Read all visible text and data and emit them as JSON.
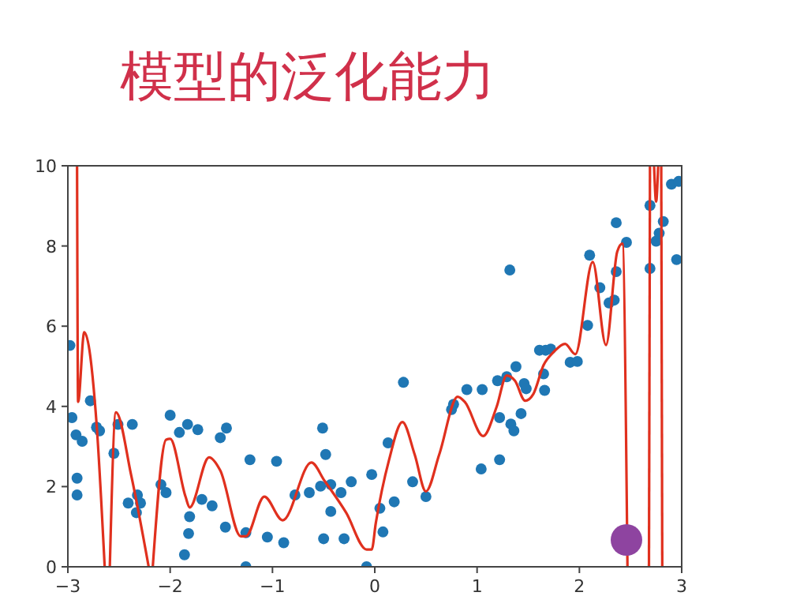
{
  "chart_data": {
    "type": "scatter",
    "title": "模型的泛化能力",
    "xlim": [
      -3,
      3
    ],
    "ylim": [
      0,
      10
    ],
    "xticks": [
      {
        "value": -3,
        "label": "−3"
      },
      {
        "value": -2,
        "label": "−2"
      },
      {
        "value": -1,
        "label": "−1"
      },
      0,
      1,
      2,
      3
    ],
    "yticks": [
      0,
      2,
      4,
      6,
      8,
      10
    ],
    "grid": false,
    "series": [
      {
        "color": "#1f77b4",
        "marker": "circle",
        "x": [
          -2.98,
          -2.96,
          -2.92,
          -2.86,
          -2.91,
          -2.91,
          -2.78,
          -2.72,
          -2.69,
          -2.55,
          -2.51,
          -2.37,
          -2.41,
          -2.32,
          -2.29,
          -2.33,
          -2.09,
          -2.04,
          -2.0,
          -1.91,
          -1.83,
          -1.73,
          -1.81,
          -1.82,
          -1.86,
          -1.69,
          -1.59,
          -1.51,
          -1.45,
          -1.46,
          -1.26,
          -1.26,
          -1.22,
          -0.96,
          -1.05,
          -0.89,
          -0.78,
          -0.64,
          -0.53,
          -0.51,
          -0.48,
          -0.43,
          -0.43,
          -0.5,
          -0.33,
          -0.3,
          -0.23,
          -0.08,
          -0.03,
          0.05,
          0.08,
          0.19,
          0.13,
          0.28,
          0.37,
          0.5,
          0.75,
          0.77,
          0.9,
          1.04,
          1.05,
          1.22,
          1.22,
          1.2,
          1.29,
          1.32,
          1.33,
          1.36,
          1.38,
          1.43,
          1.46,
          1.48,
          1.61,
          1.67,
          1.72,
          1.65,
          1.66,
          1.91,
          1.98,
          2.08,
          2.1,
          2.2,
          2.29,
          2.34,
          2.36,
          2.36,
          2.46,
          2.69,
          2.69,
          2.75,
          2.78,
          2.82,
          2.9,
          2.97,
          2.95
        ],
        "values": [
          5.52,
          3.72,
          3.29,
          3.13,
          2.21,
          1.79,
          4.14,
          3.48,
          3.39,
          2.83,
          3.55,
          3.55,
          1.59,
          1.79,
          1.59,
          1.35,
          2.05,
          1.85,
          3.78,
          3.35,
          3.55,
          3.42,
          1.25,
          0.83,
          0.3,
          1.68,
          1.52,
          3.22,
          3.46,
          0.99,
          0.85,
          0.0,
          2.67,
          2.63,
          0.74,
          0.6,
          1.79,
          1.85,
          2.01,
          3.46,
          2.8,
          2.05,
          1.38,
          0.7,
          1.85,
          0.7,
          2.12,
          0.0,
          2.3,
          1.46,
          0.87,
          1.62,
          3.09,
          4.6,
          2.12,
          1.75,
          3.92,
          4.05,
          4.42,
          2.44,
          4.42,
          2.67,
          3.72,
          4.64,
          4.74,
          7.4,
          3.56,
          3.39,
          4.99,
          3.82,
          4.57,
          4.44,
          5.4,
          5.4,
          5.43,
          4.81,
          4.4,
          5.1,
          5.12,
          6.02,
          7.77,
          6.96,
          6.58,
          6.65,
          7.36,
          8.58,
          8.09,
          9.01,
          7.44,
          8.12,
          8.32,
          8.61,
          9.54,
          9.61,
          7.66
        ]
      },
      {
        "type": "line",
        "color": "#e0301e",
        "line_style": "solid",
        "x": [
          -2.91,
          -2.9,
          -2.84,
          -2.72,
          -2.64
        ],
        "values": [
          10,
          4.11,
          5.85,
          3.59,
          0
        ]
      },
      {
        "type": "line",
        "color": "#e0301e",
        "line_style": "solid",
        "x": [
          -2.59,
          -2.53,
          -2.38,
          -2.21
        ],
        "values": [
          0,
          3.85,
          2.27,
          0
        ]
      },
      {
        "type": "line",
        "color": "#e0301e",
        "line_style": "solid",
        "x": [
          -2.17,
          -2.04,
          -2.0,
          -1.85,
          -1.81,
          -1.62,
          -1.51,
          -1.31,
          -1.26,
          -1.08,
          -0.9,
          -0.62,
          -0.49,
          -0.28,
          -0.08,
          -0.03,
          0.01,
          0.14,
          0.27,
          0.39,
          0.5,
          0.63,
          0.81,
          0.88,
          1.06,
          1.19,
          1.29,
          1.37,
          1.47,
          1.55,
          1.65,
          1.75,
          1.86,
          1.96,
          2.13,
          2.26,
          2.37,
          2.42,
          2.47
        ],
        "values": [
          0,
          3.17,
          3.19,
          1.75,
          1.48,
          2.73,
          2.4,
          0.76,
          0.76,
          1.75,
          1.16,
          2.6,
          2.14,
          1.35,
          0.43,
          0.43,
          1.09,
          2.67,
          3.61,
          2.8,
          1.88,
          2.8,
          4.24,
          4.11,
          3.26,
          3.98,
          4.77,
          4.64,
          4.14,
          4.31,
          5.03,
          5.36,
          5.56,
          5.3,
          7.6,
          5.53,
          7.86,
          8.06,
          0
        ]
      },
      {
        "type": "line",
        "color": "#e0301e",
        "line_style": "solid",
        "x": [
          2.68,
          2.69
        ],
        "values": [
          0,
          10
        ]
      },
      {
        "type": "line",
        "color": "#e0301e",
        "line_style": "solid",
        "x": [
          2.73,
          2.75,
          2.77
        ],
        "values": [
          10,
          9.1,
          10
        ]
      },
      {
        "type": "line",
        "color": "#e0301e",
        "line_style": "solid",
        "x": [
          2.8,
          2.81
        ],
        "values": [
          10,
          0
        ]
      }
    ]
  }
}
